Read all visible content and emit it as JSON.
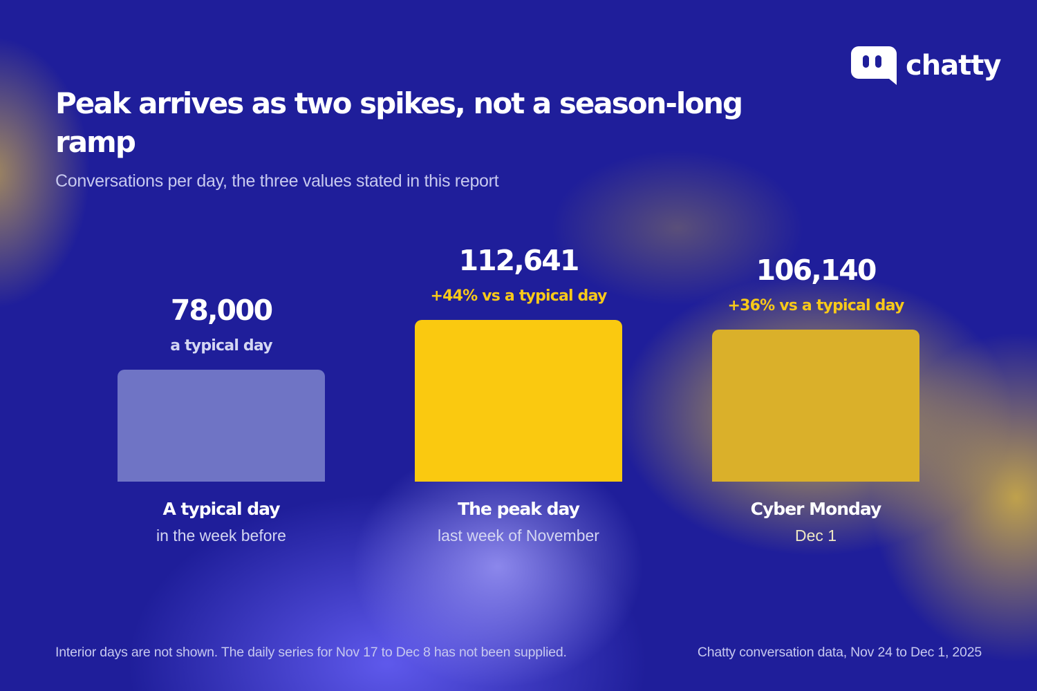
{
  "brand": {
    "name": "chatty",
    "logo_icon": "chat-bubble-icon",
    "logo_color": "#ffffff"
  },
  "chart_data": {
    "type": "bar",
    "title": "Peak arrives as two spikes, not a season-long ramp",
    "subtitle": "Conversations per day, the three values stated in this report",
    "ylim": [
      0,
      120000
    ],
    "grid": false,
    "bars": [
      {
        "value": 78000,
        "value_label": "78,000",
        "note": "a typical day",
        "category": "A typical day",
        "sublabel": "in the week before",
        "color": "#6f74c5",
        "note_color": "#d4d6f2",
        "sublabel_color": "#d4d6f2"
      },
      {
        "value": 112641,
        "value_label": "112,641",
        "note": "+44% vs a typical day",
        "category": "The peak day",
        "sublabel": "last week of November",
        "color": "#fac910",
        "note_color": "#f8c919",
        "sublabel_color": "#d4d6f2"
      },
      {
        "value": 106140,
        "value_label": "106,140",
        "note": "+36% vs a typical day",
        "category": "Cyber Monday",
        "sublabel": "Dec 1",
        "color": "#dab02a",
        "note_color": "#f8c919",
        "sublabel_color": "#efe8c3"
      }
    ]
  },
  "footnote": "Interior days are not shown. The daily series for Nov 17 to Dec 8 has not been supplied.",
  "source": "Chatty conversation data, Nov 24 to Dec 1, 2025"
}
